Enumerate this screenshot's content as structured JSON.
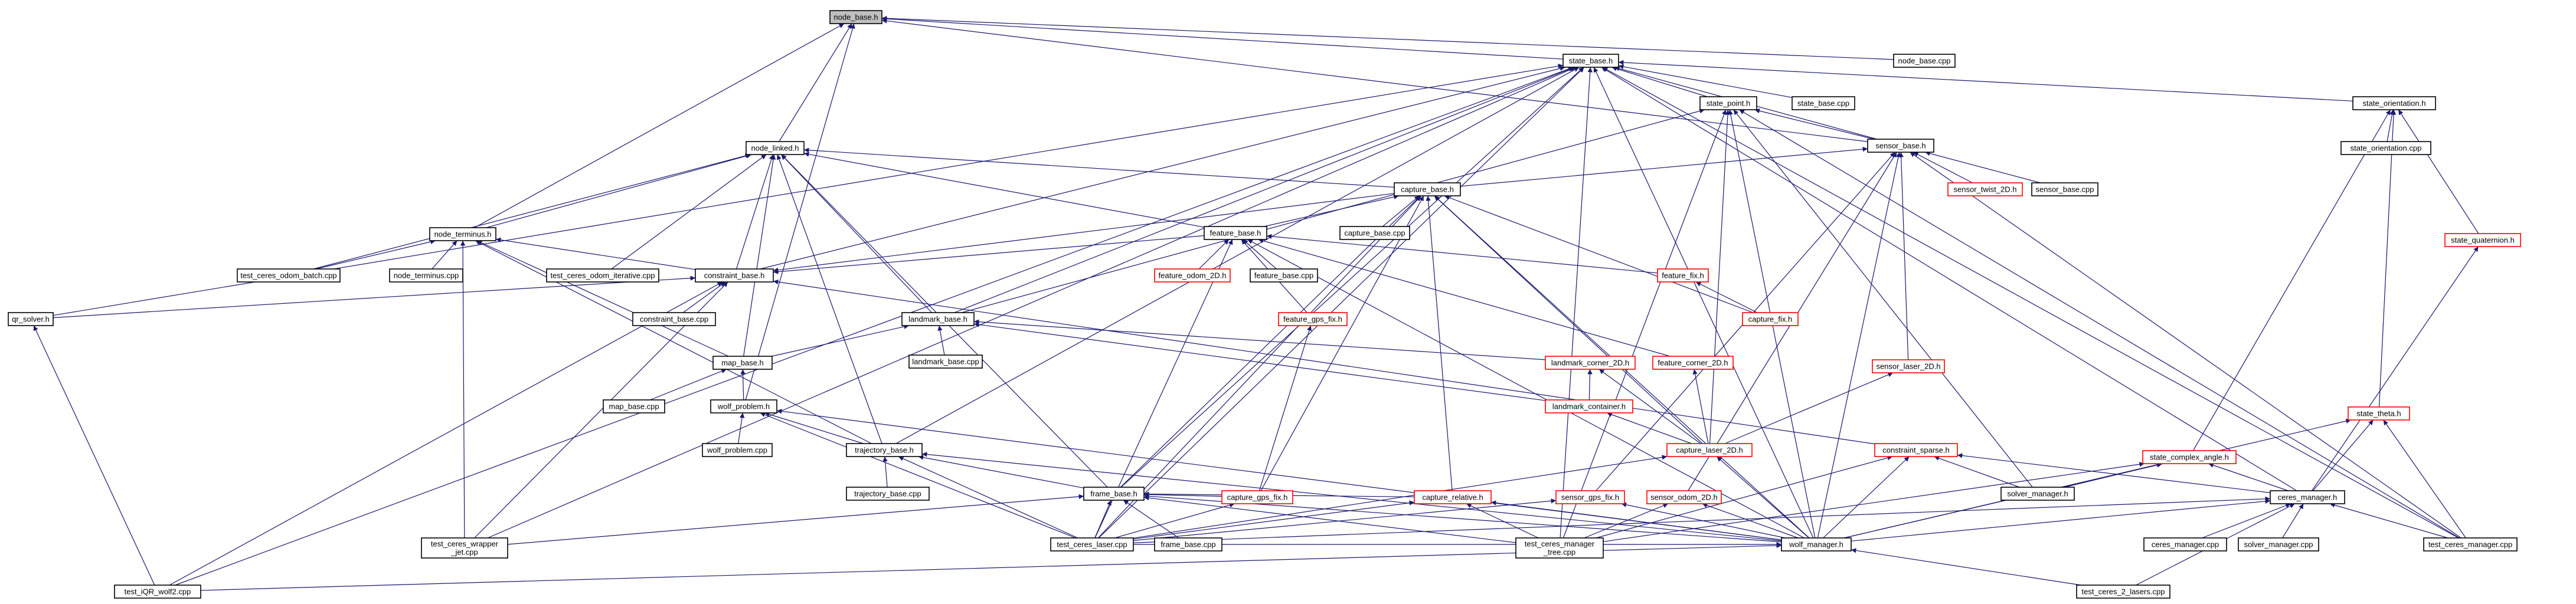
{
  "diagram": {
    "nodes": [
      {
        "id": "node_base_h",
        "label": "node_base.h",
        "current": true
      },
      {
        "id": "node_base_cpp",
        "label": "node_base.cpp"
      },
      {
        "id": "state_base_h",
        "label": "state_base.h"
      },
      {
        "id": "state_point_h",
        "label": "state_point.h"
      },
      {
        "id": "state_base_cpp",
        "label": "state_base.cpp"
      },
      {
        "id": "state_orientation_h",
        "label": "state_orientation.h"
      },
      {
        "id": "state_orientation_cpp",
        "label": "state_orientation.cpp"
      },
      {
        "id": "state_quaternion_h",
        "label": "state_quaternion.h",
        "truncated": true
      },
      {
        "id": "state_theta_h",
        "label": "state_theta.h",
        "truncated": true
      },
      {
        "id": "state_complex_angle_h",
        "label": "state_complex_angle.h",
        "truncated": true
      },
      {
        "id": "node_linked_h",
        "label": "node_linked.h"
      },
      {
        "id": "node_terminus_h",
        "label": "node_terminus.h"
      },
      {
        "id": "node_terminus_cpp",
        "label": "node_terminus.cpp"
      },
      {
        "id": "test_ceres_odom_batch_cpp",
        "label": "test_ceres_odom_batch.cpp"
      },
      {
        "id": "test_ceres_odom_iterative_cpp",
        "label": "test_ceres_odom_iterative.cpp"
      },
      {
        "id": "constraint_base_h",
        "label": "constraint_base.h"
      },
      {
        "id": "constraint_base_cpp",
        "label": "constraint_base.cpp"
      },
      {
        "id": "qr_solver_h",
        "label": "qr_solver.h"
      },
      {
        "id": "sensor_base_h",
        "label": "sensor_base.h"
      },
      {
        "id": "sensor_twist_2D_h",
        "label": "sensor_twist_2D.h",
        "truncated": true
      },
      {
        "id": "sensor_base_cpp",
        "label": "sensor_base.cpp"
      },
      {
        "id": "sensor_laser_2D_h",
        "label": "sensor_laser_2D.h",
        "truncated": true
      },
      {
        "id": "sensor_gps_fix_h",
        "label": "sensor_gps_fix.h",
        "truncated": true
      },
      {
        "id": "sensor_odom_2D_h",
        "label": "sensor_odom_2D.h",
        "truncated": true
      },
      {
        "id": "capture_base_h",
        "label": "capture_base.h"
      },
      {
        "id": "capture_base_cpp",
        "label": "capture_base.cpp"
      },
      {
        "id": "feature_base_h",
        "label": "feature_base.h"
      },
      {
        "id": "feature_odom_2D_h",
        "label": "feature_odom_2D.h",
        "truncated": true
      },
      {
        "id": "feature_base_cpp",
        "label": "feature_base.cpp"
      },
      {
        "id": "feature_fix_h",
        "label": "feature_fix.h",
        "truncated": true
      },
      {
        "id": "capture_fix_h",
        "label": "capture_fix.h",
        "truncated": true
      },
      {
        "id": "feature_gps_fix_h",
        "label": "feature_gps_fix.h",
        "truncated": true
      },
      {
        "id": "landmark_base_h",
        "label": "landmark_base.h"
      },
      {
        "id": "landmark_base_cpp",
        "label": "landmark_base.cpp"
      },
      {
        "id": "landmark_corner_2D_h",
        "label": "landmark_corner_2D.h",
        "truncated": true
      },
      {
        "id": "feature_corner_2D_h",
        "label": "feature_corner_2D.h",
        "truncated": true
      },
      {
        "id": "landmark_container_h",
        "label": "landmark_container.h",
        "truncated": true
      },
      {
        "id": "map_base_h",
        "label": "map_base.h"
      },
      {
        "id": "map_base_cpp",
        "label": "map_base.cpp"
      },
      {
        "id": "wolf_problem_h",
        "label": "wolf_problem.h"
      },
      {
        "id": "wolf_problem_cpp",
        "label": "wolf_problem.cpp"
      },
      {
        "id": "trajectory_base_h",
        "label": "trajectory_base.h"
      },
      {
        "id": "trajectory_base_cpp",
        "label": "trajectory_base.cpp"
      },
      {
        "id": "capture_laser_2D_h",
        "label": "capture_laser_2D.h",
        "truncated": true
      },
      {
        "id": "constraint_sparse_h",
        "label": "constraint_sparse.h",
        "truncated": true
      },
      {
        "id": "solver_manager_h",
        "label": "solver_manager.h"
      },
      {
        "id": "frame_base_h",
        "label": "frame_base.h"
      },
      {
        "id": "frame_base_cpp",
        "label": "frame_base.cpp"
      },
      {
        "id": "capture_gps_fix_h",
        "label": "capture_gps_fix.h",
        "truncated": true
      },
      {
        "id": "capture_relative_h",
        "label": "capture_relative.h",
        "truncated": true
      },
      {
        "id": "ceres_manager_h",
        "label": "ceres_manager.h"
      },
      {
        "id": "ceres_manager_cpp",
        "label": "ceres_manager.cpp"
      },
      {
        "id": "solver_manager_cpp",
        "label": "solver_manager.cpp"
      },
      {
        "id": "test_ceres_manager_cpp",
        "label": "test_ceres_manager.cpp"
      },
      {
        "id": "wolf_manager_h",
        "label": "wolf_manager.h"
      },
      {
        "id": "test_ceres_laser_cpp",
        "label": "test_ceres_laser.cpp"
      },
      {
        "id": "test_ceres_manager_tree_cpp",
        "label": "test_ceres_manager\n_tree.cpp"
      },
      {
        "id": "test_ceres_wrapper_jet_cpp",
        "label": "test_ceres_wrapper\n_jet.cpp"
      },
      {
        "id": "test_iQR_wolf2_cpp",
        "label": "test_iQR_wolf2.cpp"
      },
      {
        "id": "test_ceres_2_lasers_cpp",
        "label": "test_ceres_2_lasers.cpp"
      }
    ]
  }
}
